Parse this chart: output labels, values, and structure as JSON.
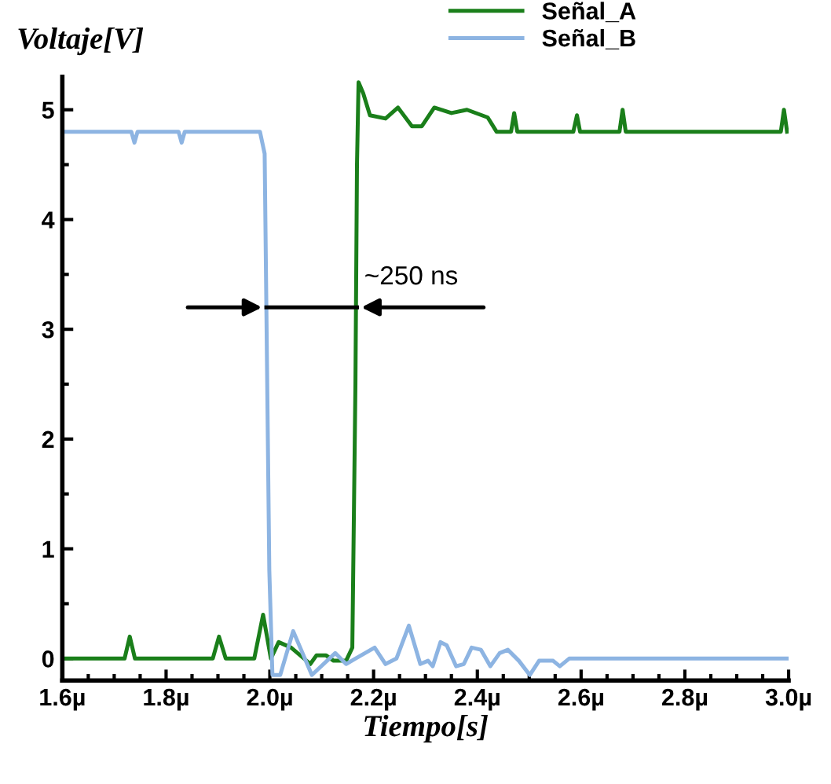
{
  "chart_data": {
    "type": "line",
    "xlabel": "Tiempo[s]",
    "ylabel": "Voltaje[V]",
    "xlim": [
      1.6,
      3.0
    ],
    "ylim": [
      -0.2,
      5.3
    ],
    "xticks": [
      {
        "value": 1.6,
        "label": "1.6µ"
      },
      {
        "value": 1.8,
        "label": "1.8µ"
      },
      {
        "value": 2.0,
        "label": "2.0µ"
      },
      {
        "value": 2.2,
        "label": "2.2µ"
      },
      {
        "value": 2.4,
        "label": "2.4µ"
      },
      {
        "value": 2.6,
        "label": "2.6µ"
      },
      {
        "value": 2.8,
        "label": "2.8µ"
      },
      {
        "value": 3.0,
        "label": "3.0µ"
      }
    ],
    "yticks": [
      0,
      1,
      2,
      3,
      4,
      5
    ],
    "grid": false,
    "legend": "top right",
    "marker": "none",
    "line_style": "solid",
    "annotations": [
      {
        "text": "~250 ns",
        "x": 2.168,
        "y": 3.2
      }
    ],
    "series": [
      {
        "name": "Señal_A",
        "color": "#1a7f1a",
        "x": [
          1.6,
          1.72,
          1.73,
          1.74,
          1.89,
          1.902,
          1.915,
          1.97,
          1.987,
          2.002,
          2.017,
          2.041,
          2.066,
          2.078,
          2.09,
          2.108,
          2.123,
          2.147,
          2.159,
          2.165,
          2.168,
          2.171,
          2.18,
          2.193,
          2.223,
          2.247,
          2.274,
          2.293,
          2.317,
          2.35,
          2.38,
          2.42,
          2.437,
          2.465,
          2.471,
          2.477,
          2.585,
          2.592,
          2.598,
          2.674,
          2.68,
          2.686,
          2.985,
          2.991,
          2.997
        ],
        "values": [
          0,
          0,
          0.2,
          0,
          0,
          0.2,
          0,
          0,
          0.4,
          0,
          0.15,
          0.1,
          0,
          -0.05,
          0.03,
          0.03,
          -0.02,
          -0.02,
          0.1,
          2.5,
          4.5,
          5.25,
          5.15,
          4.95,
          4.92,
          5.02,
          4.85,
          4.85,
          5.02,
          4.97,
          5.0,
          4.93,
          4.8,
          4.8,
          4.97,
          4.8,
          4.8,
          4.95,
          4.8,
          4.8,
          5.0,
          4.8,
          4.8,
          5.0,
          4.8
        ]
      },
      {
        "name": "Señal_B",
        "color": "#8db4e2",
        "x": [
          1.6,
          1.733,
          1.739,
          1.745,
          1.824,
          1.83,
          1.836,
          1.981,
          1.99,
          1.999,
          2.005,
          2.02,
          2.045,
          2.081,
          2.126,
          2.147,
          2.165,
          2.202,
          2.223,
          2.244,
          2.268,
          2.29,
          2.305,
          2.314,
          2.329,
          2.341,
          2.359,
          2.374,
          2.389,
          2.407,
          2.425,
          2.443,
          2.459,
          2.48,
          2.501,
          2.519,
          2.546,
          2.559,
          2.577,
          3.0
        ],
        "values": [
          4.8,
          4.8,
          4.7,
          4.8,
          4.8,
          4.7,
          4.8,
          4.8,
          4.6,
          0.8,
          -0.15,
          -0.15,
          0.25,
          -0.15,
          0.05,
          -0.05,
          0.0,
          0.1,
          -0.05,
          0.0,
          0.3,
          -0.05,
          -0.02,
          -0.07,
          0.15,
          0.12,
          -0.07,
          -0.05,
          0.1,
          0.08,
          -0.07,
          0.05,
          0.08,
          -0.02,
          -0.15,
          -0.02,
          -0.02,
          -0.07,
          0,
          0
        ]
      }
    ]
  }
}
